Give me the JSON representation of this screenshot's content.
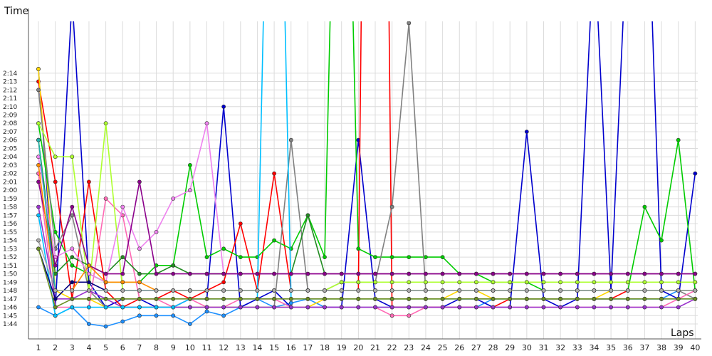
{
  "chart_data": {
    "type": "line",
    "ylabel": "Time",
    "xlabel": "Laps",
    "x": [
      1,
      2,
      3,
      4,
      5,
      6,
      7,
      8,
      9,
      10,
      11,
      12,
      13,
      14,
      15,
      16,
      17,
      18,
      19,
      20,
      21,
      22,
      23,
      24,
      25,
      26,
      27,
      28,
      29,
      30,
      31,
      32,
      33,
      34,
      35,
      36,
      37,
      38,
      39,
      40
    ],
    "yticks": [
      "1:44",
      "1:45",
      "1:46",
      "1:47",
      "1:48",
      "1:49",
      "1:50",
      "1:51",
      "1:52",
      "1:53",
      "1:54",
      "1:55",
      "1:56",
      "1:57",
      "1:58",
      "1:59",
      "2:00",
      "2:01",
      "2:02",
      "2:03",
      "2:04",
      "2:05",
      "2:06",
      "2:07",
      "2:08",
      "2:09",
      "2:10",
      "2:11",
      "2:12",
      "2:13",
      "2:14"
    ],
    "ylim_seconds": [
      103,
      135
    ],
    "grid": true,
    "legend": "none",
    "series": [
      {
        "color": "#1e90ff",
        "values": [
          106,
          105,
          106,
          104,
          103.7,
          104.3,
          105,
          105,
          105,
          104,
          105.5,
          105,
          106,
          107,
          106,
          106.5,
          107,
          106,
          106,
          106,
          106,
          106,
          106,
          106,
          106,
          106,
          106,
          107,
          107,
          107,
          107,
          107,
          107,
          107,
          107,
          107,
          107,
          107,
          108,
          108
        ]
      },
      {
        "color": "#0000cd",
        "values": [
          134.5,
          106,
          143,
          109,
          106,
          107,
          107,
          106,
          106,
          107,
          107,
          130,
          106,
          107,
          108,
          106,
          106,
          106,
          106,
          126,
          107,
          106,
          106,
          106,
          106,
          107,
          107,
          106,
          106,
          127,
          107,
          106,
          107,
          150,
          108,
          153,
          167,
          108,
          107,
          122
        ]
      },
      {
        "color": "#ff0000",
        "values": [
          133,
          121,
          107,
          121,
          108,
          106,
          107,
          107,
          108,
          107,
          108,
          109,
          116,
          108,
          122,
          108,
          108,
          108,
          108,
          108,
          300,
          106,
          106,
          106,
          106,
          106,
          106,
          106,
          107,
          107,
          107,
          107,
          107,
          107,
          107,
          108,
          108,
          108,
          108,
          108
        ]
      },
      {
        "color": "#ffd700",
        "values": [
          134.5,
          108,
          107,
          107,
          106,
          106,
          106,
          106,
          106,
          106,
          106,
          106,
          106,
          106,
          106,
          106,
          106,
          107,
          107,
          107,
          107,
          107,
          107,
          107,
          107,
          108,
          108,
          107,
          107,
          107,
          107,
          107,
          107,
          107,
          108,
          108,
          108,
          108,
          108,
          108
        ]
      },
      {
        "color": "#00cc00",
        "values": [
          128,
          115,
          111,
          110,
          109,
          109,
          109,
          111,
          111,
          123,
          112,
          113,
          112,
          112,
          114,
          113,
          117,
          112,
          200,
          113,
          112,
          112,
          112,
          112,
          112,
          110,
          110,
          109,
          109,
          109,
          108,
          108,
          108,
          108,
          108,
          108,
          118,
          114,
          126,
          108
        ]
      },
      {
        "color": "#808080",
        "values": [
          132,
          113,
          117,
          108,
          106,
          106,
          106,
          106,
          106,
          106,
          106,
          106,
          106,
          106,
          106,
          126,
          108,
          108,
          109,
          109,
          109,
          118,
          140,
          108,
          108,
          108,
          108,
          108,
          108,
          108,
          108,
          108,
          108,
          108,
          108,
          108,
          108,
          108,
          108,
          107
        ]
      },
      {
        "color": "#ff69b4",
        "values": [
          122,
          106,
          106,
          106,
          119,
          117,
          107,
          107,
          106,
          107,
          106,
          106,
          107,
          107,
          107,
          106,
          106,
          106,
          106,
          106,
          106,
          105,
          105,
          106,
          106,
          106,
          106,
          106,
          106,
          106,
          106,
          106,
          106,
          106,
          106,
          106,
          106,
          106,
          107,
          108
        ]
      },
      {
        "color": "#9932cc",
        "values": [
          118,
          107,
          107,
          108,
          107,
          106,
          106,
          106,
          106,
          106,
          106,
          106,
          106,
          106,
          106,
          106,
          106,
          106,
          106,
          106,
          106,
          106,
          106,
          106,
          106,
          106,
          106,
          106,
          106,
          106,
          106,
          106,
          106,
          106,
          106,
          106,
          106,
          106,
          106,
          107
        ]
      },
      {
        "color": "#adff2f",
        "values": [
          128,
          124,
          124,
          108,
          128,
          108,
          108,
          108,
          108,
          108,
          108,
          108,
          108,
          108,
          108,
          108,
          108,
          108,
          109,
          109,
          109,
          109,
          109,
          109,
          109,
          109,
          109,
          109,
          109,
          109,
          109,
          109,
          109,
          109,
          109,
          109,
          109,
          109,
          109,
          109
        ]
      },
      {
        "color": "#00bfff",
        "values": [
          117,
          105,
          106,
          106,
          106,
          106,
          106,
          106,
          106,
          107,
          107,
          107,
          107,
          107,
          200,
          107,
          107,
          107,
          107,
          107,
          107,
          107,
          107,
          107,
          107,
          107,
          107,
          107,
          107,
          107,
          107,
          107,
          107,
          107,
          107,
          107,
          107,
          107,
          107,
          107
        ]
      },
      {
        "color": "#228b22",
        "values": [
          126,
          110,
          112,
          111,
          110,
          112,
          110,
          110,
          111,
          110,
          110,
          110,
          110,
          110,
          110,
          110,
          117,
          110,
          110,
          110,
          110,
          110,
          110,
          110,
          110,
          110,
          110,
          110,
          110,
          110,
          110,
          110,
          110,
          110,
          110,
          110,
          110,
          110,
          110,
          110
        ]
      },
      {
        "color": "#ee82ee",
        "values": [
          124,
          112,
          113,
          110,
          109,
          118,
          113,
          115,
          119,
          120,
          128,
          110,
          110,
          110,
          110,
          110,
          110,
          110,
          110,
          110,
          110,
          110,
          110,
          110,
          110,
          110,
          110,
          110,
          110,
          110,
          110,
          110,
          110,
          110,
          110,
          110,
          110,
          110,
          110,
          110
        ]
      },
      {
        "color": "#8b008b",
        "values": [
          121,
          111,
          118,
          111,
          110,
          110,
          121,
          110,
          110,
          110,
          110,
          110,
          110,
          110,
          110,
          110,
          110,
          110,
          110,
          110,
          110,
          110,
          110,
          110,
          110,
          110,
          110,
          110,
          110,
          110,
          110,
          110,
          110,
          110,
          110,
          110,
          110,
          110,
          110,
          110
        ]
      },
      {
        "color": "#000080",
        "values": [
          113,
          107,
          109,
          109,
          108,
          108,
          108,
          108,
          108,
          108,
          108,
          108,
          108,
          108,
          108,
          108,
          108,
          108,
          108,
          108,
          108,
          108,
          108,
          108,
          108,
          108,
          108,
          108,
          108,
          108,
          108,
          108,
          108,
          108,
          108,
          108,
          108,
          108,
          108,
          108
        ]
      },
      {
        "color": "#ff8c00",
        "values": [
          123,
          108,
          108,
          111,
          109,
          109,
          109,
          108,
          108,
          108,
          108,
          108,
          108,
          108,
          108,
          108,
          108,
          108,
          108,
          108,
          108,
          108,
          108,
          108,
          108,
          108,
          108,
          108,
          108,
          108,
          108,
          108,
          108,
          108,
          108,
          108,
          108,
          108,
          108,
          108
        ]
      },
      {
        "color": "#6b8e23",
        "values": [
          113,
          106,
          107,
          107,
          107,
          107,
          107,
          107,
          107,
          107,
          107,
          107,
          107,
          107,
          107,
          107,
          107,
          107,
          107,
          107,
          107,
          107,
          107,
          107,
          107,
          107,
          107,
          107,
          107,
          107,
          107,
          107,
          107,
          107,
          107,
          107,
          107,
          107,
          107,
          107
        ]
      },
      {
        "color": "#20b2aa",
        "values": [
          126,
          108,
          108,
          108,
          108,
          108,
          108,
          108,
          108,
          108,
          108,
          108,
          108,
          108,
          108,
          108,
          108,
          108,
          108,
          108,
          108,
          108,
          108,
          108,
          108,
          108,
          108,
          108,
          108,
          108,
          108,
          108,
          108,
          108,
          108,
          108,
          108,
          108,
          108,
          108
        ]
      },
      {
        "color": "#a9a9a9",
        "values": [
          114,
          108,
          108,
          108,
          108,
          108,
          108,
          108,
          108,
          108,
          108,
          108,
          108,
          108,
          108,
          108,
          108,
          108,
          108,
          108,
          108,
          108,
          108,
          108,
          108,
          108,
          108,
          108,
          108,
          108,
          108,
          108,
          108,
          108,
          108,
          108,
          108,
          108,
          108,
          108
        ]
      }
    ]
  }
}
